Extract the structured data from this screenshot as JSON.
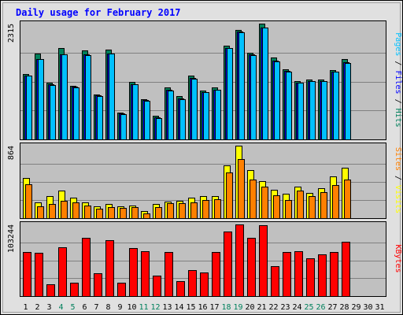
{
  "chart_data": [
    {
      "type": "bar",
      "title": "Daily usage for February 2017",
      "categories": [
        "1",
        "2",
        "3",
        "4",
        "5",
        "6",
        "7",
        "8",
        "9",
        "10",
        "11",
        "12",
        "13",
        "14",
        "15",
        "16",
        "17",
        "18",
        "19",
        "20",
        "21",
        "22",
        "23",
        "24",
        "25",
        "26",
        "27",
        "28",
        "29",
        "30",
        "31"
      ],
      "weekend_categories": [
        "4",
        "5",
        "11",
        "12",
        "18",
        "19",
        "25",
        "26"
      ],
      "ytick": "2315",
      "ymax": 2315,
      "right_labels": [
        "Pages",
        "Files",
        "Hits"
      ],
      "series": [
        {
          "name": "Hits",
          "color": "#00805c",
          "values": [
            1300,
            1710,
            1140,
            1830,
            1070,
            1780,
            900,
            1790,
            540,
            1150,
            810,
            470,
            1040,
            860,
            1280,
            980,
            1040,
            1880,
            2195,
            1730,
            2315,
            1630,
            1400,
            1170,
            1200,
            1190,
            1390,
            1600,
            0,
            0,
            0
          ]
        },
        {
          "name": "Files",
          "color": "#0000ff",
          "values": [
            1280,
            1610,
            1100,
            1700,
            1050,
            1700,
            880,
            1720,
            520,
            1110,
            780,
            440,
            1000,
            820,
            1230,
            950,
            1000,
            1830,
            2150,
            1700,
            2240,
            1570,
            1370,
            1140,
            1170,
            1170,
            1360,
            1540,
            0,
            0,
            0
          ]
        },
        {
          "name": "Pages",
          "color": "#00c0ff",
          "values": [
            1270,
            1600,
            1080,
            1700,
            1040,
            1690,
            870,
            1710,
            510,
            1100,
            770,
            430,
            980,
            800,
            1220,
            940,
            990,
            1820,
            2140,
            1690,
            2240,
            1560,
            1360,
            1130,
            1160,
            1160,
            1350,
            1530,
            0,
            0,
            0
          ]
        }
      ]
    },
    {
      "type": "bar",
      "ytick": "864",
      "ymax": 864,
      "right_labels": [
        "Sites",
        "Visits"
      ],
      "series": [
        {
          "name": "Visits",
          "color": "#ffff00",
          "values": [
            480,
            190,
            260,
            330,
            240,
            190,
            140,
            170,
            140,
            150,
            80,
            170,
            200,
            210,
            240,
            260,
            260,
            630,
            864,
            570,
            440,
            340,
            290,
            380,
            300,
            360,
            500,
            600,
            0,
            0,
            0
          ]
        },
        {
          "name": "Sites",
          "color": "#ff8000",
          "values": [
            400,
            140,
            170,
            210,
            190,
            150,
            110,
            130,
            120,
            130,
            60,
            130,
            180,
            180,
            190,
            220,
            230,
            540,
            700,
            460,
            380,
            270,
            220,
            330,
            260,
            310,
            390,
            460,
            0,
            0,
            0
          ]
        }
      ]
    },
    {
      "type": "bar",
      "ytick": "103244",
      "ymax": 103244,
      "right_labels": [
        "KBytes"
      ],
      "series": [
        {
          "name": "KBytes",
          "color": "#ff0000",
          "values": [
            63000,
            62000,
            17000,
            70000,
            19000,
            84000,
            33000,
            81000,
            19000,
            69000,
            65000,
            30000,
            64000,
            21000,
            38000,
            34000,
            64000,
            93000,
            103244,
            84000,
            102000,
            43000,
            64000,
            65000,
            55000,
            60000,
            63000,
            78000,
            0,
            0,
            0
          ]
        }
      ]
    }
  ],
  "colors": {
    "panel_bg": "#c0c0c0",
    "bg": "#e0e0e0",
    "title": "#0000ff",
    "weekday_label": "#000000",
    "weekend_label": "#00805c",
    "hits": "#00805c",
    "files": "#0000ff",
    "pages": "#00c0ff",
    "visits": "#ffff00",
    "sites": "#ff8000",
    "kbytes": "#ff0000"
  }
}
